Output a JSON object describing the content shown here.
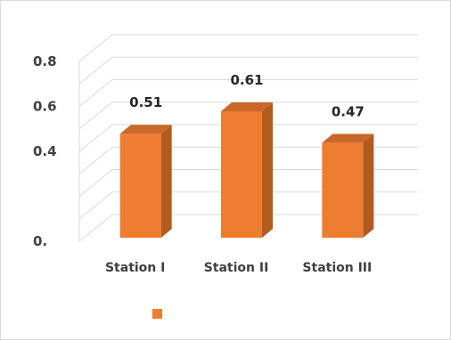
{
  "chart_data": {
    "type": "bar",
    "style": "3d-column",
    "categories": [
      "Station I",
      "Station II",
      "Station III"
    ],
    "series": [
      {
        "values": [
          0.51,
          0.61,
          0.47
        ]
      }
    ],
    "data_labels": [
      "0.51",
      "0.61",
      "0.47"
    ],
    "y_tick_labels": [
      {
        "value": 0,
        "label": "0."
      },
      {
        "value": 0.4,
        "label": "0.4"
      },
      {
        "value": 0.6,
        "label": "0.6"
      },
      {
        "value": 0.8,
        "label": "0.8"
      }
    ],
    "ylim": [
      0,
      0.8
    ],
    "grid": true,
    "legend": "bottom-left",
    "title": "",
    "xlabel": "",
    "ylabel": "",
    "colors": {
      "bar_front": "#ed7d31",
      "bar_side": "#b25b1f",
      "bar_top": "#c9682a",
      "grid": "#d9d9d9"
    }
  }
}
